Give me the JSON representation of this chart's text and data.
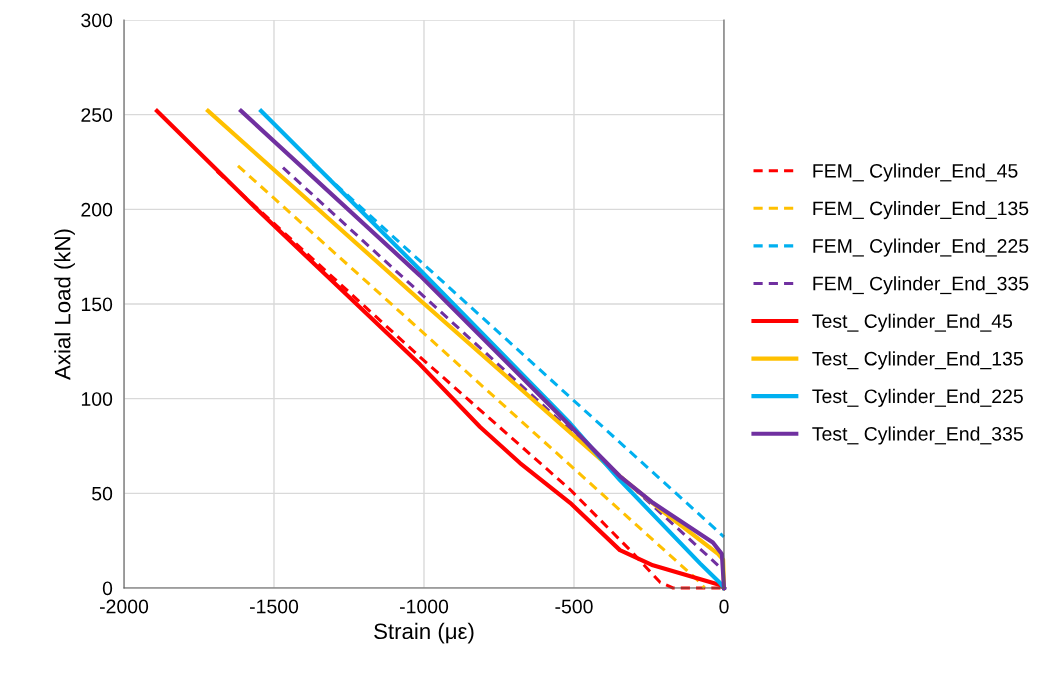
{
  "chart_data": {
    "type": "line",
    "xlabel": "Strain (με)",
    "ylabel": "Axial Load (kN)",
    "xlim": [
      -2000,
      0
    ],
    "ylim": [
      0,
      300
    ],
    "xticks": [
      -2000,
      -1500,
      -1000,
      -500,
      0
    ],
    "yticks": [
      0,
      50,
      100,
      150,
      200,
      250,
      300
    ],
    "grid": true,
    "legend": "right",
    "marker": "none",
    "series": [
      {
        "name": "FEM_ Cylinder_End_45",
        "color": "#ff0000",
        "line_style": "dashed",
        "x": [
          -1690,
          -1013,
          -513,
          -313,
          -213,
          -170,
          -10
        ],
        "values": [
          220,
          122,
          52,
          20,
          3,
          0,
          0
        ]
      },
      {
        "name": "FEM_ Cylinder_End_135",
        "color": "#ffc000",
        "line_style": "dashed",
        "x": [
          -1620,
          -80,
          -65
        ],
        "values": [
          223,
          3,
          0
        ]
      },
      {
        "name": "FEM_ Cylinder_End_225",
        "color": "#00b0f0",
        "line_style": "dashed",
        "x": [
          -1370,
          0
        ],
        "values": [
          224,
          27
        ]
      },
      {
        "name": "FEM_ Cylinder_End_335",
        "color": "#7030a0",
        "line_style": "dashed",
        "x": [
          -1470,
          -20
        ],
        "values": [
          222,
          12
        ]
      },
      {
        "name": "Test_ Cylinder_End_45",
        "color": "#ff0000",
        "line_style": "solid",
        "x": [
          -1890,
          -1557,
          -1013,
          -813,
          -680,
          -513,
          -347,
          -237,
          -13,
          0
        ],
        "values": [
          252,
          200,
          118,
          85,
          66,
          45,
          20,
          12,
          1.6,
          0
        ]
      },
      {
        "name": "Test_ Cylinder_End_135",
        "color": "#ffc000",
        "line_style": "solid",
        "x": [
          -1720,
          -1013,
          -347,
          -200,
          -20,
          -3,
          0
        ],
        "values": [
          252,
          152,
          59,
          40,
          18,
          15,
          0
        ]
      },
      {
        "name": "Test_ Cylinder_End_225",
        "color": "#00b0f0",
        "line_style": "solid",
        "x": [
          -1543,
          -1013,
          -513,
          -347,
          -80,
          -13,
          0
        ],
        "values": [
          252,
          168,
          87,
          57,
          13,
          2.6,
          0
        ]
      },
      {
        "name": "Test_ Cylinder_End_335",
        "color": "#7030a0",
        "line_style": "solid",
        "x": [
          -1610,
          -1013,
          -590,
          -347,
          -237,
          -37,
          -7,
          0
        ],
        "values": [
          252,
          165,
          98,
          59,
          45,
          24,
          18,
          0
        ]
      }
    ]
  }
}
